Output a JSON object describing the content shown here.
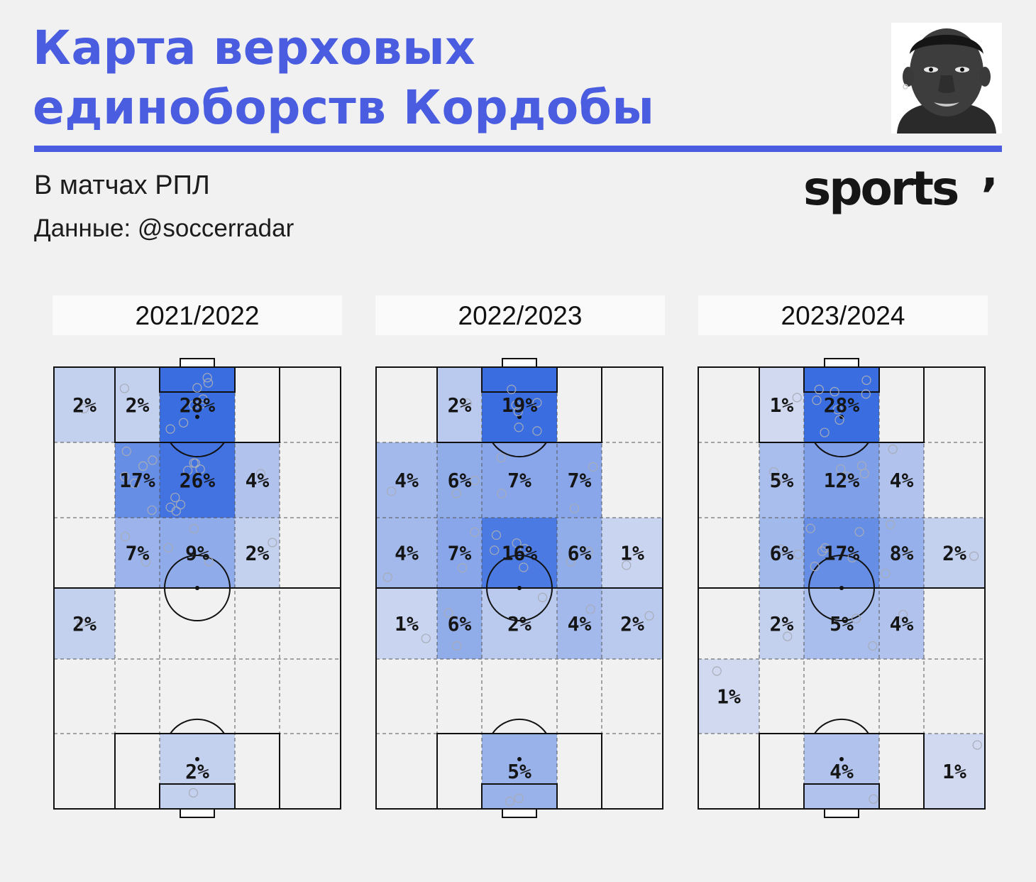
{
  "header": {
    "title_line1": "Карта верховых",
    "title_line2": "единоборств Кордобы",
    "subtitle": "В матчах РПЛ",
    "source": "Данные: @soccerradar",
    "logo_text": "sports",
    "logo_mark": "’",
    "accent_color": "#4a5ce0"
  },
  "player_photo": {
    "icon": "player-portrait"
  },
  "chart_data": [
    {
      "type": "heatmap",
      "title": "2021/2022",
      "grid": {
        "columns": 5,
        "rows": 6
      },
      "scale": {
        "low_color": "#e7eaf3",
        "high_color": "#3a6ee0"
      },
      "cells": [
        {
          "row": 0,
          "col": 0,
          "value": 2
        },
        {
          "row": 0,
          "col": 1,
          "value": 2
        },
        {
          "row": 0,
          "col": 2,
          "value": 28
        },
        {
          "row": 1,
          "col": 1,
          "value": 17
        },
        {
          "row": 1,
          "col": 2,
          "value": 26
        },
        {
          "row": 1,
          "col": 3,
          "value": 4
        },
        {
          "row": 2,
          "col": 1,
          "value": 7
        },
        {
          "row": 2,
          "col": 2,
          "value": 9
        },
        {
          "row": 2,
          "col": 3,
          "value": 2
        },
        {
          "row": 3,
          "col": 0,
          "value": 2
        },
        {
          "row": 5,
          "col": 2,
          "value": 2
        }
      ]
    },
    {
      "type": "heatmap",
      "title": "2022/2023",
      "grid": {
        "columns": 5,
        "rows": 6
      },
      "scale": {
        "low_color": "#e7eaf3",
        "high_color": "#3a6ee0"
      },
      "cells": [
        {
          "row": 0,
          "col": 1,
          "value": 2
        },
        {
          "row": 0,
          "col": 2,
          "value": 19
        },
        {
          "row": 1,
          "col": 0,
          "value": 4
        },
        {
          "row": 1,
          "col": 1,
          "value": 6
        },
        {
          "row": 1,
          "col": 2,
          "value": 7
        },
        {
          "row": 1,
          "col": 3,
          "value": 7
        },
        {
          "row": 2,
          "col": 0,
          "value": 4
        },
        {
          "row": 2,
          "col": 1,
          "value": 7
        },
        {
          "row": 2,
          "col": 2,
          "value": 16
        },
        {
          "row": 2,
          "col": 3,
          "value": 6
        },
        {
          "row": 2,
          "col": 4,
          "value": 1
        },
        {
          "row": 3,
          "col": 0,
          "value": 1
        },
        {
          "row": 3,
          "col": 1,
          "value": 6
        },
        {
          "row": 3,
          "col": 2,
          "value": 2
        },
        {
          "row": 3,
          "col": 3,
          "value": 4
        },
        {
          "row": 3,
          "col": 4,
          "value": 2
        },
        {
          "row": 5,
          "col": 2,
          "value": 5
        }
      ]
    },
    {
      "type": "heatmap",
      "title": "2023/2024",
      "grid": {
        "columns": 5,
        "rows": 6
      },
      "scale": {
        "low_color": "#e7eaf3",
        "high_color": "#3a6ee0"
      },
      "cells": [
        {
          "row": 0,
          "col": 1,
          "value": 1
        },
        {
          "row": 0,
          "col": 2,
          "value": 28
        },
        {
          "row": 1,
          "col": 1,
          "value": 5
        },
        {
          "row": 1,
          "col": 2,
          "value": 12
        },
        {
          "row": 1,
          "col": 3,
          "value": 4
        },
        {
          "row": 2,
          "col": 1,
          "value": 6
        },
        {
          "row": 2,
          "col": 2,
          "value": 17
        },
        {
          "row": 2,
          "col": 3,
          "value": 8
        },
        {
          "row": 2,
          "col": 4,
          "value": 2
        },
        {
          "row": 3,
          "col": 1,
          "value": 2
        },
        {
          "row": 3,
          "col": 2,
          "value": 5
        },
        {
          "row": 3,
          "col": 3,
          "value": 4
        },
        {
          "row": 4,
          "col": 0,
          "value": 1
        },
        {
          "row": 5,
          "col": 2,
          "value": 4
        },
        {
          "row": 5,
          "col": 4,
          "value": 1
        }
      ]
    }
  ]
}
